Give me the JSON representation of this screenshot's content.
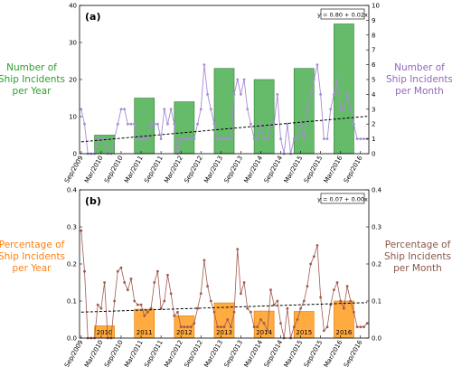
{
  "colors": {
    "green_bar": "#66bb6a",
    "green_bar_edge": "#2e7d32",
    "green_text": "#2ca02c",
    "purple_line": "#a78bd6",
    "purple_text": "#9467bd",
    "orange_bar": "#ffab40",
    "orange_bar_edge": "#e07b00",
    "orange_text": "#ff7f0e",
    "brown_line": "#a05a50",
    "brown_text": "#8c564b",
    "trend": "#000000"
  },
  "chart_data": [
    {
      "type": "bar+line",
      "panel_label": "(a)",
      "equation": "y = 0.80 + 0.02x",
      "left_label": [
        "Number of",
        "Ship Incidents",
        "per Year"
      ],
      "right_label": [
        "Number of",
        "Ship Incidents",
        "per Month"
      ],
      "left_ylim": [
        0,
        40
      ],
      "left_ticks": [
        0,
        10,
        20,
        30,
        40
      ],
      "right_ylim": [
        0,
        10
      ],
      "right_ticks": [
        0,
        1,
        2,
        3,
        4,
        5,
        6,
        7,
        8,
        9,
        10
      ],
      "xticks": [
        "Sep/2009",
        "Mar/2010",
        "Sep/2010",
        "Mar/2011",
        "Sep/2011",
        "Mar/2012",
        "Sep/2012",
        "Mar/2013",
        "Sep/2013",
        "Mar/2014",
        "Sep/2014",
        "Mar/2015",
        "Sep/2015",
        "Mar/2016",
        "Sep/2016"
      ],
      "bars": [
        {
          "start": 4,
          "end": 10,
          "value": 5
        },
        {
          "start": 16,
          "end": 22,
          "value": 15
        },
        {
          "start": 28,
          "end": 34,
          "value": 14
        },
        {
          "start": 40,
          "end": 46,
          "value": 23
        },
        {
          "start": 52,
          "end": 58,
          "value": 20
        },
        {
          "start": 64,
          "end": 70,
          "value": 23
        },
        {
          "start": 76,
          "end": 82,
          "value": 35
        }
      ],
      "series": [
        {
          "values": [
            3,
            2,
            0,
            0,
            0,
            1,
            1,
            1,
            0,
            0,
            1,
            2,
            3,
            3,
            2,
            2,
            2,
            1,
            1,
            1,
            1,
            2,
            2,
            2,
            1,
            3,
            2,
            3,
            2,
            0,
            1,
            1,
            1,
            1,
            1,
            2,
            3,
            6,
            4,
            3,
            2,
            1,
            1,
            1,
            1,
            1,
            4,
            5,
            4,
            5,
            3,
            2,
            1,
            1,
            2,
            1,
            1,
            2,
            2,
            4,
            1,
            0,
            2,
            0,
            1,
            1,
            2,
            1,
            3,
            4,
            5,
            6,
            4,
            1,
            1,
            3,
            4,
            5,
            3,
            3,
            4,
            3,
            2,
            1,
            1,
            1,
            1
          ]
        }
      ],
      "trend": {
        "intercept": 0.8,
        "slope": 0.02
      }
    },
    {
      "type": "bar+line",
      "panel_label": "(b)",
      "equation": "y = 0.07 + 0.00x",
      "left_label": [
        "Percentage of",
        "Ship Incidents",
        "per Year"
      ],
      "right_label": [
        "Percentage of",
        "Ship Incidents",
        "per Month"
      ],
      "left_ylim": [
        0,
        0.4
      ],
      "left_ticks": [
        0.0,
        0.1,
        0.2,
        0.3,
        0.4
      ],
      "right_ylim": [
        0,
        0.4
      ],
      "right_ticks": [
        0.0,
        0.1,
        0.2,
        0.3,
        0.4
      ],
      "xticks": [
        "Sep/2009",
        "Mar/2010",
        "Sep/2010",
        "Mar/2011",
        "Sep/2011",
        "Mar/2012",
        "Sep/2012",
        "Mar/2013",
        "Sep/2013",
        "Mar/2014",
        "Sep/2014",
        "Mar/2015",
        "Sep/2015",
        "Mar/2016",
        "Sep/2016"
      ],
      "bars": [
        {
          "start": 4,
          "end": 10,
          "value": 0.033,
          "label": "2010"
        },
        {
          "start": 16,
          "end": 22,
          "value": 0.078,
          "label": "2011"
        },
        {
          "start": 28,
          "end": 34,
          "value": 0.06,
          "label": "2012"
        },
        {
          "start": 40,
          "end": 46,
          "value": 0.095,
          "label": "2013"
        },
        {
          "start": 52,
          "end": 58,
          "value": 0.073,
          "label": "2014"
        },
        {
          "start": 64,
          "end": 70,
          "value": 0.072,
          "label": "2015"
        },
        {
          "start": 76,
          "end": 82,
          "value": 0.1,
          "label": "2016"
        }
      ],
      "series": [
        {
          "values": [
            0.29,
            0.18,
            0,
            0,
            0,
            0.09,
            0.08,
            0.15,
            0,
            0,
            0.1,
            0.18,
            0.19,
            0.15,
            0.13,
            0.16,
            0.1,
            0.09,
            0.09,
            0.06,
            0.07,
            0.08,
            0.15,
            0.18,
            0.08,
            0.1,
            0.17,
            0.12,
            0.06,
            0.07,
            0.03,
            0.03,
            0.03,
            0.03,
            0.04,
            0.08,
            0.12,
            0.21,
            0.14,
            0.1,
            0.07,
            0.03,
            0.03,
            0.03,
            0.05,
            0.03,
            0.07,
            0.24,
            0.12,
            0.15,
            0.08,
            0.07,
            0.03,
            0.03,
            0.05,
            0.04,
            0.02,
            0.13,
            0.09,
            0.1,
            0.04,
            0,
            0.08,
            0,
            0.03,
            0.05,
            0.08,
            0.1,
            0.14,
            0.2,
            0.22,
            0.25,
            0.11,
            0.02,
            0.03,
            0.09,
            0.13,
            0.15,
            0.1,
            0.08,
            0.14,
            0.1,
            0.07,
            0.03,
            0.03,
            0.03,
            0.04
          ]
        }
      ],
      "trend": {
        "intercept": 0.07,
        "slope": 0.0003
      }
    }
  ]
}
